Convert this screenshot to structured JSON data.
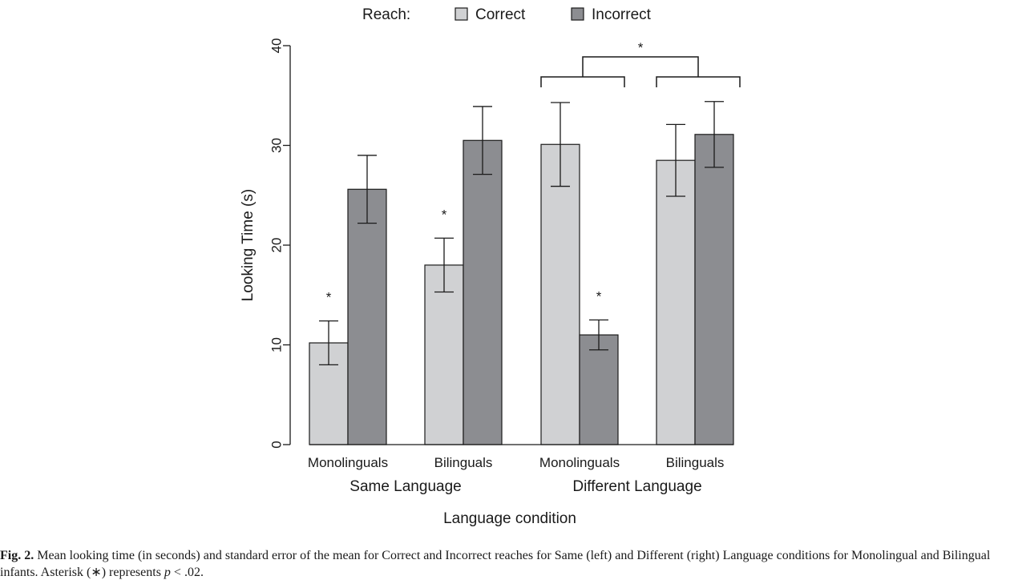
{
  "chart_data": {
    "type": "bar",
    "legend": {
      "title": "Reach:",
      "placement": "top",
      "entries": [
        {
          "name": "Correct",
          "color": "#d0d1d3"
        },
        {
          "name": "Incorrect",
          "color": "#8c8d91"
        }
      ]
    },
    "categories": [
      "Monolinguals",
      "Bilinguals",
      "Monolinguals",
      "Bilinguals"
    ],
    "groups": [
      {
        "label": "Same Language",
        "categories": [
          0,
          1
        ]
      },
      {
        "label": "Different Language",
        "categories": [
          2,
          3
        ]
      }
    ],
    "series": [
      {
        "name": "Correct",
        "values": [
          10.2,
          18.0,
          30.1,
          28.5
        ],
        "error": [
          2.2,
          2.7,
          4.2,
          3.6
        ]
      },
      {
        "name": "Incorrect",
        "values": [
          25.6,
          30.5,
          11.0,
          31.1
        ],
        "error": [
          3.4,
          3.4,
          1.5,
          3.3
        ]
      }
    ],
    "ylabel": "Looking Time (s)",
    "xlabel": "Language condition",
    "ylim": [
      0,
      40
    ],
    "yticks": [
      0,
      10,
      20,
      30,
      40
    ],
    "grid": false,
    "significance": {
      "symbol": "*",
      "bars": [
        {
          "series": "Correct",
          "category": 0
        },
        {
          "series": "Correct",
          "category": 1
        },
        {
          "series": "Incorrect",
          "category": 2
        }
      ],
      "brackets": [
        {
          "between_categories": [
            2,
            3
          ]
        }
      ]
    }
  },
  "caption": {
    "label": "Fig. 2.",
    "text_before_p": " Mean looking time (in seconds) and standard error of the mean for Correct and Incorrect reaches for Same (left) and Different (right) Language conditions for Monolingual and Bilingual infants. Asterisk (∗) represents ",
    "p_symbol": "p",
    "text_after_p": " < .02."
  },
  "colors": {
    "correct": "#d0d1d3",
    "incorrect": "#8c8d91",
    "ink": "#1a1a1a"
  }
}
